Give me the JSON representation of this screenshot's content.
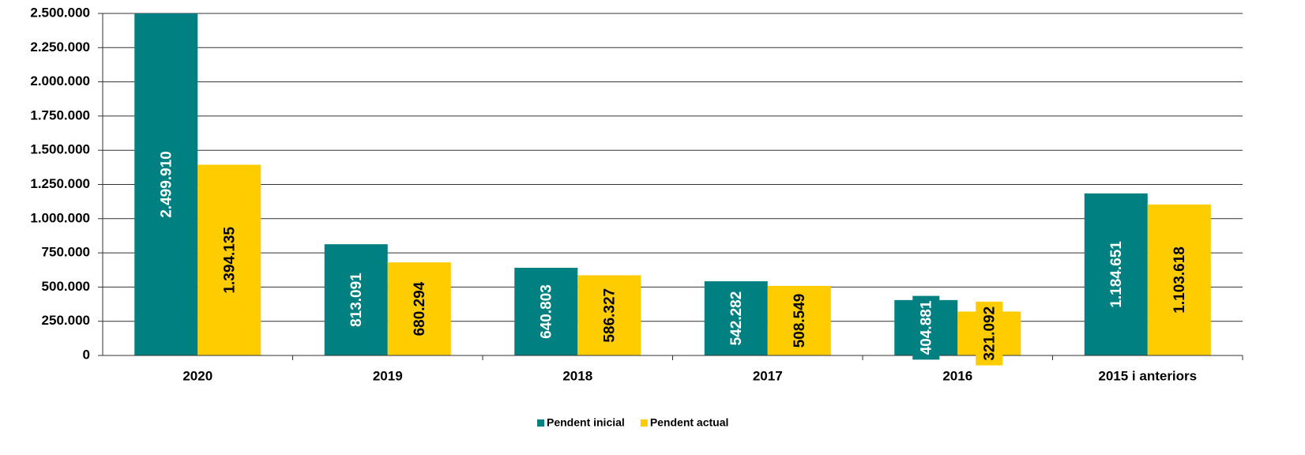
{
  "chart_data": {
    "type": "bar",
    "categories": [
      "2020",
      "2019",
      "2018",
      "2017",
      "2016",
      "2015 i anteriors"
    ],
    "series": [
      {
        "name": "Pendent inicial",
        "color": "#008080",
        "label_color": "#ffffff",
        "values": [
          2499910,
          813091,
          640803,
          542282,
          404881,
          1184651
        ],
        "value_labels": [
          "2.499.910",
          "813.091",
          "640.803",
          "542.282",
          "404.881",
          "1.184.651"
        ]
      },
      {
        "name": "Pendent actual",
        "color": "#ffcc00",
        "label_color": "#000000",
        "values": [
          1394135,
          680294,
          586327,
          508549,
          321092,
          1103618
        ],
        "value_labels": [
          "1.394.135",
          "680.294",
          "586.327",
          "508.549",
          "321.092",
          "1.103.618"
        ]
      }
    ],
    "ylim": [
      0,
      2500000
    ],
    "yticks": [
      0,
      {
        "value": 250000,
        "label": "250.000"
      },
      {
        "value": 500000,
        "label": "500.000"
      },
      {
        "value": 750000,
        "label": "750.000"
      },
      {
        "value": 1000000,
        "label": "1.000.000"
      },
      {
        "value": 1250000,
        "label": "1.250.000"
      },
      {
        "value": 1500000,
        "label": "1.500.000"
      },
      {
        "value": 1750000,
        "label": "1.750.000"
      },
      {
        "value": 2000000,
        "label": "2.000.000"
      },
      {
        "value": 2250000,
        "label": "2.250.000"
      },
      {
        "value": 2500000,
        "label": "2.500.000"
      }
    ],
    "grid": true,
    "legend": "bottom"
  }
}
